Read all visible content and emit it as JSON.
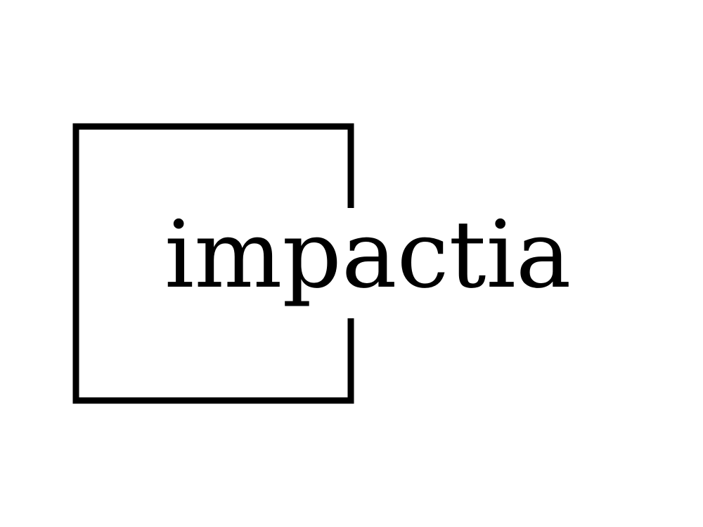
{
  "brand": {
    "name": "impactia",
    "text_color": "#000000",
    "frame_color": "#000000",
    "background_color": "#ffffff"
  },
  "logo": {
    "icon": "open-square-frame-icon"
  }
}
